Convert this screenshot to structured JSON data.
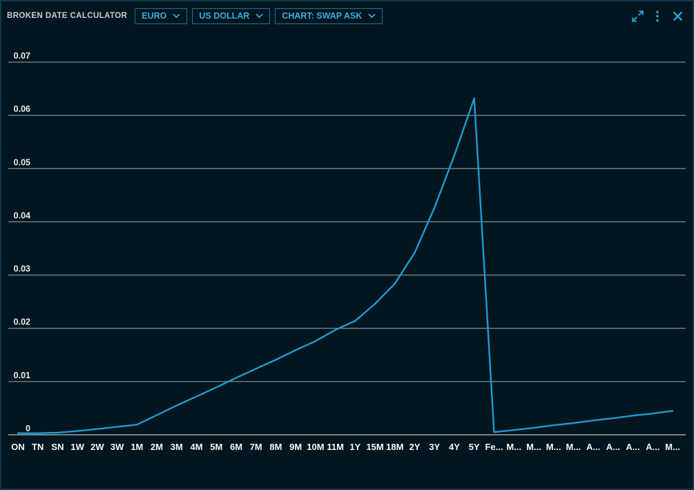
{
  "window": {
    "title": "BROKEN DATE CALCULATOR"
  },
  "header": {
    "dropdowns": [
      {
        "label": "EURO"
      },
      {
        "label": "US DOLLAR"
      },
      {
        "label": "CHART: SWAP ASK"
      }
    ],
    "icons": {
      "expand": "expand-icon",
      "menu": "kebab-menu-icon",
      "close": "close-icon"
    },
    "accent_color": "#35acdf"
  },
  "chart_data": {
    "type": "line",
    "title": "",
    "xlabel": "",
    "ylabel": "",
    "categories": [
      "ON",
      "TN",
      "SN",
      "1W",
      "2W",
      "3W",
      "1M",
      "2M",
      "3M",
      "4M",
      "5M",
      "6M",
      "7M",
      "8M",
      "9M",
      "10M",
      "11M",
      "1Y",
      "15M",
      "18M",
      "2Y",
      "3Y",
      "4Y",
      "5Y",
      "Fe...",
      "M...",
      "M...",
      "M...",
      "M...",
      "A...",
      "A...",
      "A...",
      "A...",
      "M..."
    ],
    "values": [
      0.0003,
      0.0003,
      0.0004,
      0.0007,
      0.0011,
      0.0015,
      0.0019,
      0.0037,
      0.0055,
      0.0072,
      0.0089,
      0.0107,
      0.0124,
      0.0141,
      0.0159,
      0.0176,
      0.0197,
      0.0214,
      0.0246,
      0.0284,
      0.0342,
      0.0427,
      0.0525,
      0.0632,
      0.0005,
      0.0009,
      0.0013,
      0.0018,
      0.0022,
      0.0027,
      0.0031,
      0.0036,
      0.004,
      0.0045
    ],
    "ylim": [
      0,
      0.07
    ],
    "yticks": [
      0,
      0.01,
      0.02,
      0.03,
      0.04,
      0.05,
      0.06,
      0.07
    ],
    "ytick_labels": [
      "0",
      "0.01",
      "0.02",
      "0.03",
      "0.04",
      "0.05",
      "0.06",
      "0.07"
    ],
    "grid": true,
    "legend": "none",
    "line_color": "#1f9bd6",
    "grid_color": "#9aacb5",
    "zero_line_color": "#e9eef1",
    "ytick_color": "#e6ecef",
    "xtick_color": "#f4f7f8"
  }
}
